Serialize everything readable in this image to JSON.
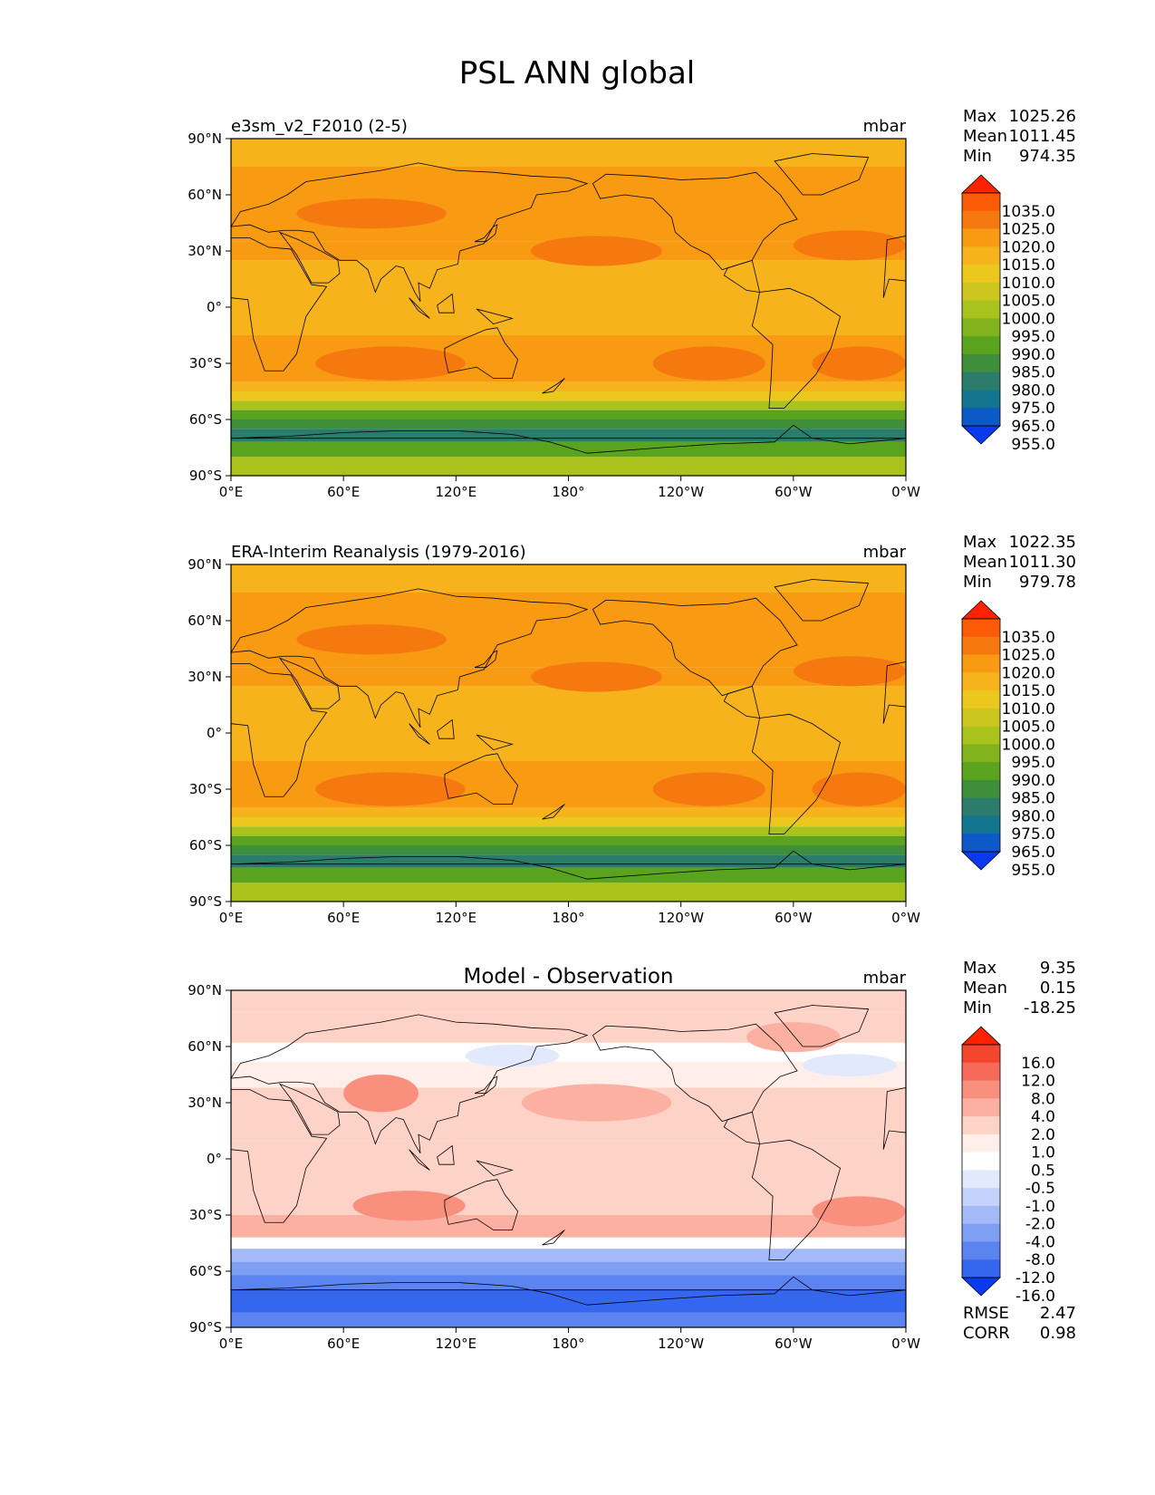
{
  "figure": {
    "title": "PSL ANN global",
    "lon_ticks": [
      "0°E",
      "60°E",
      "120°E",
      "180°",
      "120°W",
      "60°W",
      "0°W"
    ],
    "lat_ticks": [
      "90°N",
      "60°N",
      "30°N",
      "0°",
      "30°S",
      "60°S",
      "90°S"
    ]
  },
  "panels": [
    {
      "id": "model",
      "left_title": "e3sm_v2_F2010 (2-5)",
      "center_title": "",
      "units": "mbar",
      "stats": [
        {
          "label": "Max",
          "value": "1025.26"
        },
        {
          "label": "Mean",
          "value": "1011.45"
        },
        {
          "label": "Min",
          "value": "974.35"
        }
      ],
      "colorbar": {
        "labels": [
          "1035.0",
          "1025.0",
          "1020.0",
          "1015.0",
          "1010.0",
          "1005.0",
          "1000.0",
          "995.0",
          "990.0",
          "985.0",
          "980.0",
          "975.0",
          "965.0",
          "955.0"
        ],
        "colors": [
          "#ff2200",
          "#fb5a06",
          "#f67910",
          "#f89a12",
          "#f7b31b",
          "#ecc71e",
          "#cdc61e",
          "#aac21c",
          "#82b31c",
          "#59a31e",
          "#3e8e3c",
          "#2c7c6c",
          "#137590",
          "#0d59c8",
          "#0a3af0"
        ]
      },
      "extra_stats": []
    },
    {
      "id": "obs",
      "left_title": "ERA-Interim Reanalysis (1979-2016)",
      "center_title": "",
      "units": "mbar",
      "stats": [
        {
          "label": "Max",
          "value": "1022.35"
        },
        {
          "label": "Mean",
          "value": "1011.30"
        },
        {
          "label": "Min",
          "value": "979.78"
        }
      ],
      "colorbar": {
        "labels": [
          "1035.0",
          "1025.0",
          "1020.0",
          "1015.0",
          "1010.0",
          "1005.0",
          "1000.0",
          "995.0",
          "990.0",
          "985.0",
          "980.0",
          "975.0",
          "965.0",
          "955.0"
        ],
        "colors": [
          "#ff2200",
          "#fb5a06",
          "#f67910",
          "#f89a12",
          "#f7b31b",
          "#ecc71e",
          "#cdc61e",
          "#aac21c",
          "#82b31c",
          "#59a31e",
          "#3e8e3c",
          "#2c7c6c",
          "#137590",
          "#0d59c8",
          "#0a3af0"
        ]
      },
      "extra_stats": []
    },
    {
      "id": "diff",
      "left_title": "",
      "center_title": "Model - Observation",
      "units": "mbar",
      "stats": [
        {
          "label": "Max",
          "value": "9.35"
        },
        {
          "label": "Mean",
          "value": "0.15"
        },
        {
          "label": "Min",
          "value": "-18.25"
        }
      ],
      "colorbar": {
        "labels": [
          "16.0",
          "12.0",
          "8.0",
          "4.0",
          "2.0",
          "1.0",
          "0.5",
          "-0.5",
          "-1.0",
          "-2.0",
          "-4.0",
          "-8.0",
          "-12.0",
          "-16.0"
        ],
        "colors": [
          "#ff2200",
          "#f4452f",
          "#f76a5a",
          "#f98f7d",
          "#fbb0a1",
          "#fdd2c7",
          "#ffeee9",
          "#ffffff",
          "#e3e9fc",
          "#c4d2fa",
          "#a4b9f7",
          "#7f9ff4",
          "#5b84f0",
          "#3566ee",
          "#0a3af0"
        ]
      },
      "extra_stats": [
        {
          "label": "RMSE",
          "value": "2.47"
        },
        {
          "label": "CORR",
          "value": "0.98"
        }
      ]
    }
  ]
}
